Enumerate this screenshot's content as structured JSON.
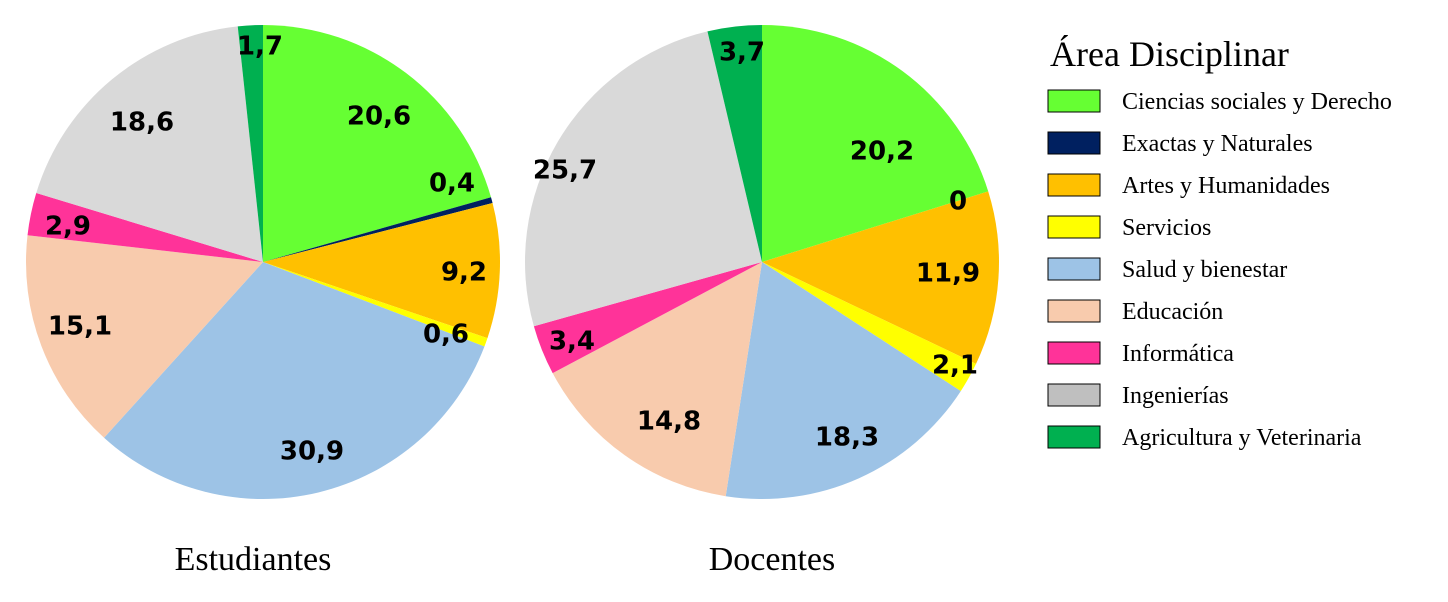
{
  "chart_data": {
    "type": "pie",
    "legend": {
      "title": "Área Disciplinar",
      "placement": "right",
      "entries": [
        {
          "name": "Ciencias sociales y Derecho",
          "color": "#66ff33"
        },
        {
          "name": "Exactas y Naturales",
          "color": "#002060"
        },
        {
          "name": "Artes y Humanidades",
          "color": "#ffc000"
        },
        {
          "name": "Servicios",
          "color": "#ffff00"
        },
        {
          "name": "Salud y bienestar",
          "color": "#9dc3e6"
        },
        {
          "name": "Educación",
          "color": "#f8cbad"
        },
        {
          "name": "Informática",
          "color": "#ff3399"
        },
        {
          "name": "Ingenierías",
          "color": "#bfbfbf"
        },
        {
          "name": "Agricultura y Veterinaria",
          "color": "#00b050"
        }
      ]
    },
    "pies": [
      {
        "title": "Estudiantes",
        "slice_colors": [
          "#66ff33",
          "#002060",
          "#ffc000",
          "#ffff00",
          "#9dc3e6",
          "#f8cbad",
          "#ff3399",
          "#d9d9d9",
          "#00b050"
        ],
        "values": [
          20.6,
          0.4,
          9.2,
          0.6,
          30.9,
          15.1,
          2.9,
          18.6,
          1.7
        ],
        "labels": [
          "20,6",
          "0,4",
          "9,2",
          "0,6",
          "30,9",
          "15,1",
          "2,9",
          "18,6",
          "1,7"
        ]
      },
      {
        "title": "Docentes",
        "slice_colors": [
          "#66ff33",
          "#002060",
          "#ffc000",
          "#ffff00",
          "#9dc3e6",
          "#f8cbad",
          "#ff3399",
          "#d9d9d9",
          "#00b050"
        ],
        "values": [
          20.2,
          0,
          11.9,
          2.1,
          18.3,
          14.8,
          3.4,
          25.7,
          3.7
        ],
        "labels": [
          "20,2",
          "0",
          "11,9",
          "2,1",
          "18,3",
          "14,8",
          "3,4",
          "25,7",
          "3,7"
        ]
      }
    ]
  }
}
